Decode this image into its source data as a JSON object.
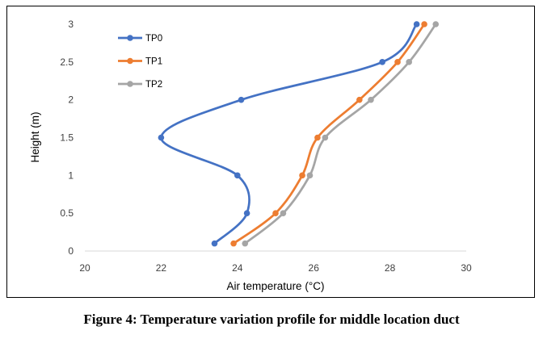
{
  "caption": "Figure 4: Temperature variation profile for middle location duct",
  "chart_data": {
    "type": "line",
    "title": "",
    "xlabel": "Air temperature (°C)",
    "ylabel": "Height (m)",
    "xlim": [
      20,
      30
    ],
    "ylim": [
      0,
      3
    ],
    "x_ticks": [
      "20",
      "22",
      "24",
      "26",
      "28",
      "30"
    ],
    "y_ticks": [
      "0",
      "0.5",
      "1",
      "1.5",
      "2",
      "2.5",
      "3"
    ],
    "grid": false,
    "legend_position": "top-left",
    "series": [
      {
        "name": "TP0",
        "color": "#4472C4",
        "points": [
          [
            23.4,
            0.1
          ],
          [
            24.25,
            0.5
          ],
          [
            24.0,
            1.0
          ],
          [
            22.0,
            1.5
          ],
          [
            24.1,
            2.0
          ],
          [
            27.8,
            2.5
          ],
          [
            28.7,
            3.0
          ]
        ]
      },
      {
        "name": "TP1",
        "color": "#ED7D31",
        "points": [
          [
            23.9,
            0.1
          ],
          [
            25.0,
            0.5
          ],
          [
            25.7,
            1.0
          ],
          [
            26.1,
            1.5
          ],
          [
            27.2,
            2.0
          ],
          [
            28.2,
            2.5
          ],
          [
            28.9,
            3.0
          ]
        ]
      },
      {
        "name": "TP2",
        "color": "#A5A5A5",
        "points": [
          [
            24.2,
            0.1
          ],
          [
            25.2,
            0.5
          ],
          [
            25.9,
            1.0
          ],
          [
            26.3,
            1.5
          ],
          [
            27.5,
            2.0
          ],
          [
            28.5,
            2.5
          ],
          [
            29.2,
            3.0
          ]
        ]
      }
    ]
  }
}
